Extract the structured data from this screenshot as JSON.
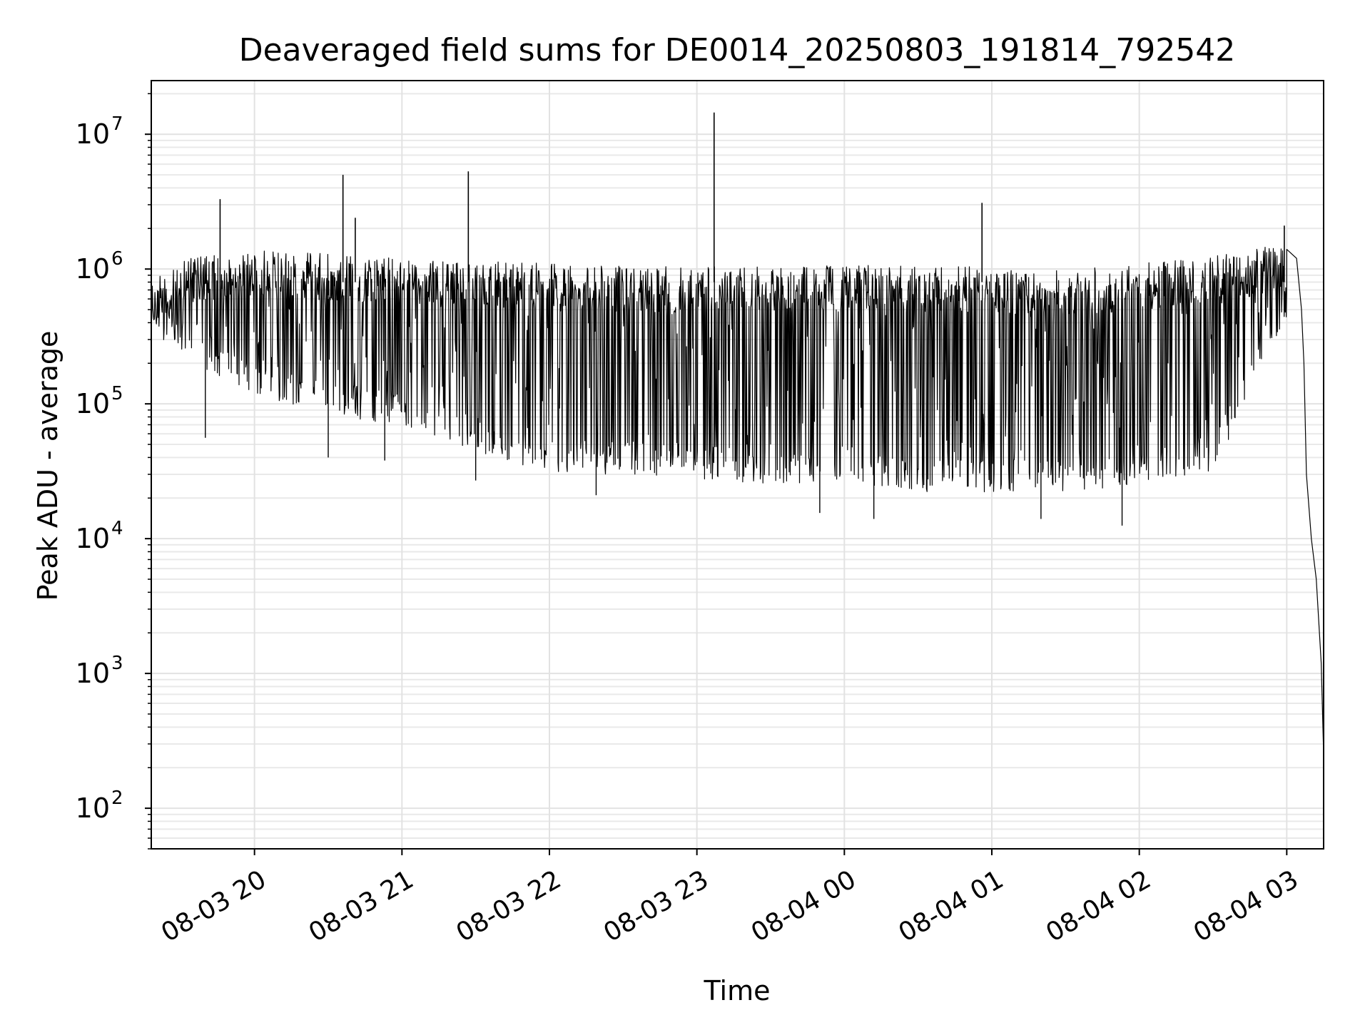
{
  "chart_data": {
    "type": "line",
    "title": "Deaveraged field sums for DE0014_20250803_191814_792542",
    "xlabel": "Time",
    "ylabel": "Peak ADU - average",
    "yscale": "log",
    "xlim": [
      "2025-08-03 19:18",
      "2025-08-04 03:15"
    ],
    "ylim": [
      50,
      25000000
    ],
    "grid": true,
    "line_color": "#000000",
    "x_ticks": [
      {
        "t": "2025-08-03 20:00",
        "label": "08-03 20"
      },
      {
        "t": "2025-08-03 21:00",
        "label": "08-03 21"
      },
      {
        "t": "2025-08-03 22:00",
        "label": "08-03 22"
      },
      {
        "t": "2025-08-03 23:00",
        "label": "08-03 23"
      },
      {
        "t": "2025-08-04 00:00",
        "label": "08-04 00"
      },
      {
        "t": "2025-08-04 01:00",
        "label": "08-04 01"
      },
      {
        "t": "2025-08-04 02:00",
        "label": "08-04 02"
      },
      {
        "t": "2025-08-04 03:00",
        "label": "08-04 03"
      }
    ],
    "y_ticks": [
      {
        "value": 100,
        "base": "10",
        "exp": "2"
      },
      {
        "value": 1000,
        "base": "10",
        "exp": "3"
      },
      {
        "value": 10000,
        "base": "10",
        "exp": "4"
      },
      {
        "value": 100000,
        "base": "10",
        "exp": "5"
      },
      {
        "value": 1000000,
        "base": "10",
        "exp": "6"
      },
      {
        "value": 10000000,
        "base": "10",
        "exp": "7"
      }
    ],
    "envelope": {
      "times": [
        "2025-08-03 19:18",
        "2025-08-03 19:30",
        "2025-08-03 20:00",
        "2025-08-03 20:30",
        "2025-08-03 21:00",
        "2025-08-03 21:30",
        "2025-08-03 22:00",
        "2025-08-03 22:30",
        "2025-08-03 23:00",
        "2025-08-03 23:30",
        "2025-08-04 00:00",
        "2025-08-04 00:30",
        "2025-08-04 01:00",
        "2025-08-04 01:30",
        "2025-08-04 02:00",
        "2025-08-04 02:30",
        "2025-08-04 02:50",
        "2025-08-04 03:00"
      ],
      "upper": [
        800000,
        1200000,
        1400000,
        1300000,
        1200000,
        1150000,
        1100000,
        1050000,
        1050000,
        1050000,
        1100000,
        1050000,
        1050000,
        1000000,
        1100000,
        1250000,
        1450000,
        1500000
      ],
      "lower": [
        400000,
        200000,
        120000,
        80000,
        70000,
        45000,
        30000,
        30000,
        28000,
        25000,
        25000,
        22000,
        22000,
        22000,
        25000,
        30000,
        200000,
        400000
      ]
    },
    "spikes": [
      {
        "t": "2025-08-03 19:46",
        "value": 3300000
      },
      {
        "t": "2025-08-03 20:36",
        "value": 5000000
      },
      {
        "t": "2025-08-03 20:41",
        "value": 2400000
      },
      {
        "t": "2025-08-03 21:27",
        "value": 5300000
      },
      {
        "t": "2025-08-03 23:07",
        "value": 14500000
      },
      {
        "t": "2025-08-04 00:56",
        "value": 3100000
      },
      {
        "t": "2025-08-04 02:59",
        "value": 2100000
      }
    ],
    "dips": [
      {
        "t": "2025-08-03 19:40",
        "value": 56000
      },
      {
        "t": "2025-08-03 20:30",
        "value": 40000
      },
      {
        "t": "2025-08-03 20:53",
        "value": 38000
      },
      {
        "t": "2025-08-03 21:30",
        "value": 27000
      },
      {
        "t": "2025-08-03 22:19",
        "value": 21000
      },
      {
        "t": "2025-08-03 23:50",
        "value": 15500
      },
      {
        "t": "2025-08-04 00:12",
        "value": 14000
      },
      {
        "t": "2025-08-04 01:20",
        "value": 14000
      },
      {
        "t": "2025-08-04 01:53",
        "value": 12500
      }
    ],
    "tail": [
      {
        "t": "2025-08-04 03:00",
        "value": 1400000
      },
      {
        "t": "2025-08-04 03:04",
        "value": 1200000
      },
      {
        "t": "2025-08-04 03:06",
        "value": 500000
      },
      {
        "t": "2025-08-04 03:07",
        "value": 200000
      },
      {
        "t": "2025-08-04 03:08",
        "value": 30000
      },
      {
        "t": "2025-08-04 03:10",
        "value": 10000
      },
      {
        "t": "2025-08-04 03:12",
        "value": 5000
      },
      {
        "t": "2025-08-04 03:14",
        "value": 1200
      },
      {
        "t": "2025-08-04 03:15",
        "value": 250
      }
    ]
  }
}
